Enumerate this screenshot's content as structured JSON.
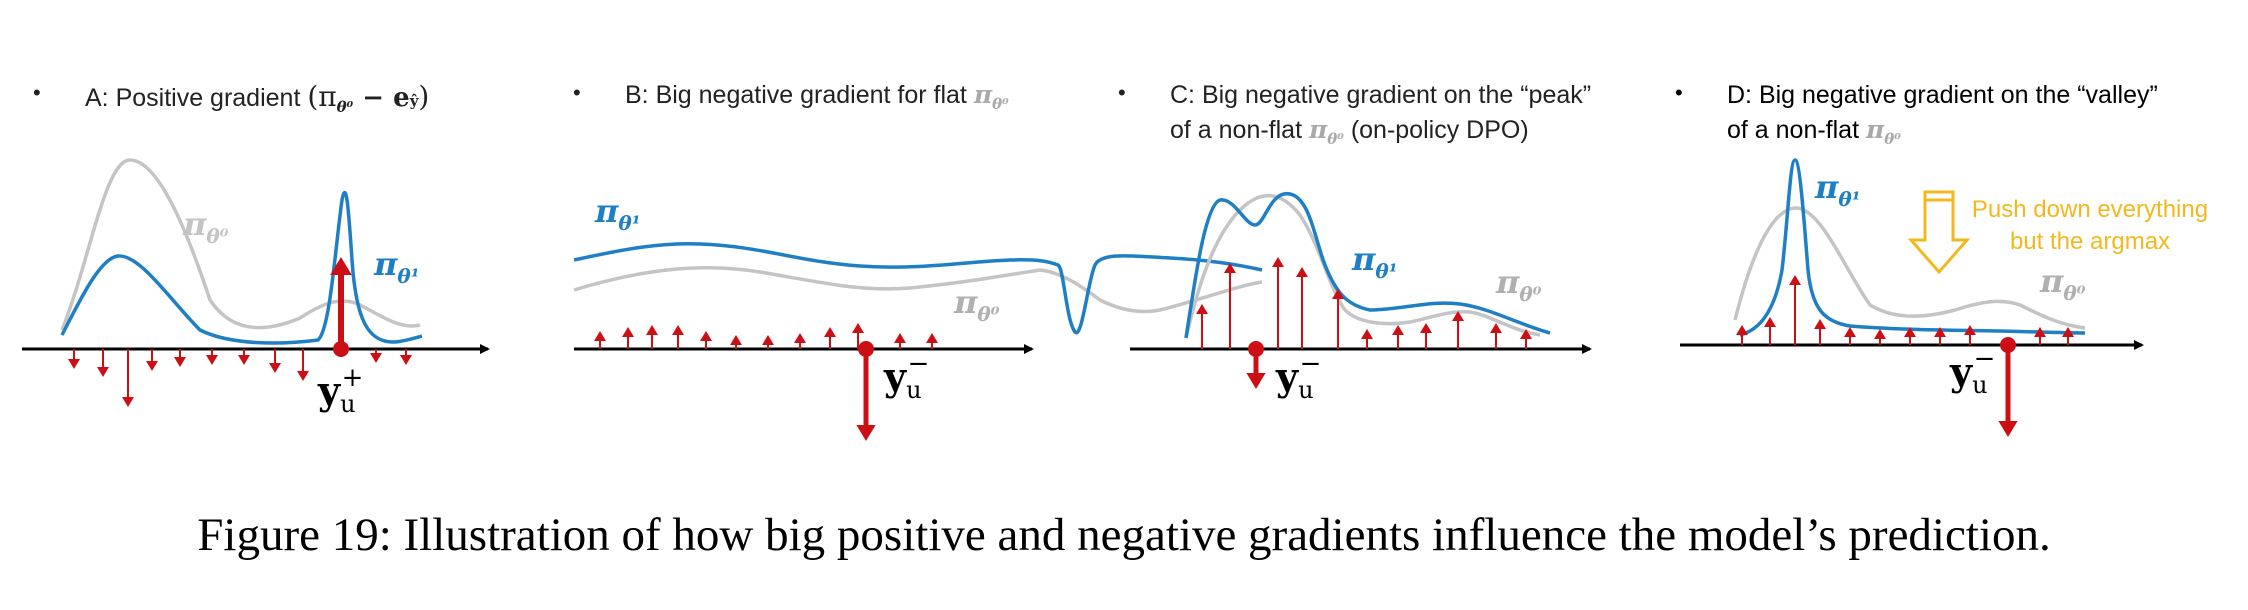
{
  "panels": [
    {
      "bullet": "•",
      "prefix": "A: Positive gradient ",
      "formula": "(π",
      "formula_sub": "θ⁰",
      "formula_tail": " − e",
      "formula_tail_sub": "ŷ",
      "formula_close": ")",
      "curve_new": "π",
      "curve_new_sub": "θ¹",
      "curve_old": "π",
      "curve_old_sub": "θ⁰",
      "y_label": "y",
      "y_sub": "u",
      "y_sup": "+"
    },
    {
      "bullet": "•",
      "text": "B: Big negative gradient for flat ",
      "pi": "π",
      "pi_sub": "θ⁰",
      "curve_new": "π",
      "curve_new_sub": "θ¹",
      "curve_old": "π",
      "curve_old_sub": "θ⁰",
      "y_label": "y",
      "y_sub": "u",
      "y_sup": "−"
    },
    {
      "bullet": "•",
      "line1": "C: Big negative gradient on the “peak”",
      "line2_prefix": "of a non-flat ",
      "pi": "π",
      "pi_sub": "θ⁰",
      "line2_suffix": " (on-policy DPO)",
      "curve_new": "π",
      "curve_new_sub": "θ¹",
      "curve_old": "π",
      "curve_old_sub": "θ⁰",
      "y_label": "y",
      "y_sub": "u",
      "y_sup": "−"
    },
    {
      "bullet": "•",
      "line1": "D: Big negative gradient on the “valley”",
      "line2_prefix": "of a non-flat ",
      "pi": "π",
      "pi_sub": "θ⁰",
      "curve_new": "π",
      "curve_new_sub": "θ¹",
      "curve_old": "π",
      "curve_old_sub": "θ⁰",
      "y_label": "y",
      "y_sub": "u",
      "y_sup": "−",
      "annotation": [
        "Push down everything",
        "but the argmax"
      ]
    }
  ],
  "caption": "Figure 19: Illustration of how big positive and negative gradients influence the model’s prediction.",
  "colors": {
    "new": "#1f7fc4",
    "old": "#c4c4c4",
    "grad": "#cc0f14",
    "axis": "#000000",
    "annot": "#f3b81d"
  }
}
